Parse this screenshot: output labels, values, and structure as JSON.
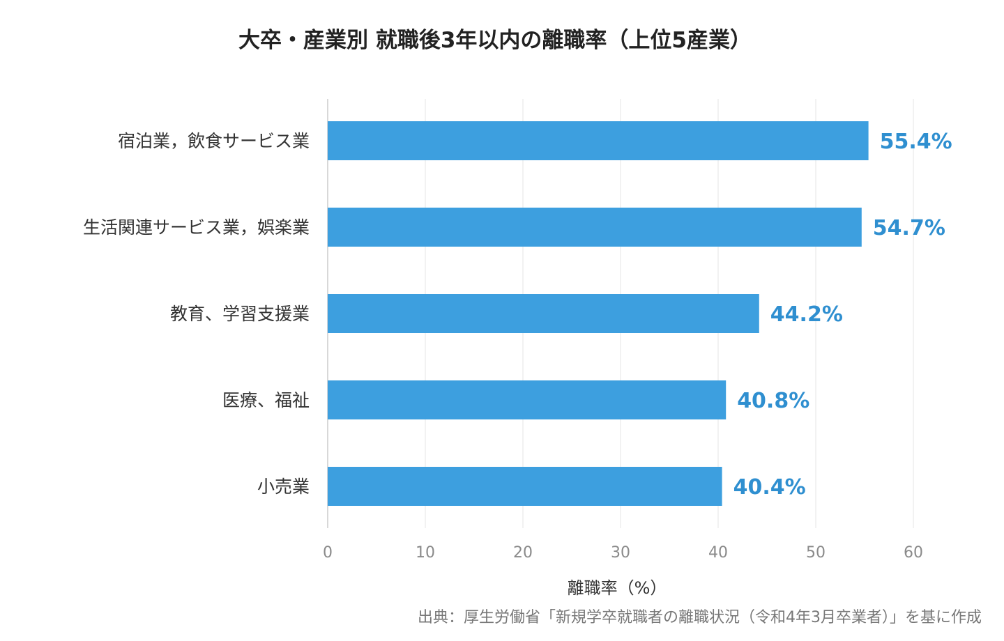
{
  "colors": {
    "bar": "#3d9fdf",
    "data_label": "#2f8fd0",
    "gridline": "#e6e6e6",
    "axis_line": "#cccccc"
  },
  "chart_data": {
    "type": "bar",
    "orientation": "horizontal",
    "title": "大卒・産業別 就職後3年以内の離職率（上位5産業）",
    "categories": [
      "宿泊業，飲食サービス業",
      "生活関連サービス業，娯楽業",
      "教育、学習支援業",
      "医療、福祉",
      "小売業"
    ],
    "values": [
      55.4,
      54.7,
      44.2,
      40.8,
      40.4
    ],
    "data_labels": [
      "55.4%",
      "54.7%",
      "44.2%",
      "40.8%",
      "40.4%"
    ],
    "xlabel": "離職率（%）",
    "ylabel": "",
    "xlim": [
      0,
      60
    ],
    "xticks": [
      0,
      10,
      20,
      30,
      40,
      50,
      60
    ],
    "xtick_labels": [
      "0",
      "10",
      "20",
      "30",
      "40",
      "50",
      "60"
    ],
    "grid": "vertical",
    "legend": "none",
    "source": "出典：厚生労働省「新規学卒就職者の離職状況（令和4年3月卒業者）」を基に作成"
  }
}
